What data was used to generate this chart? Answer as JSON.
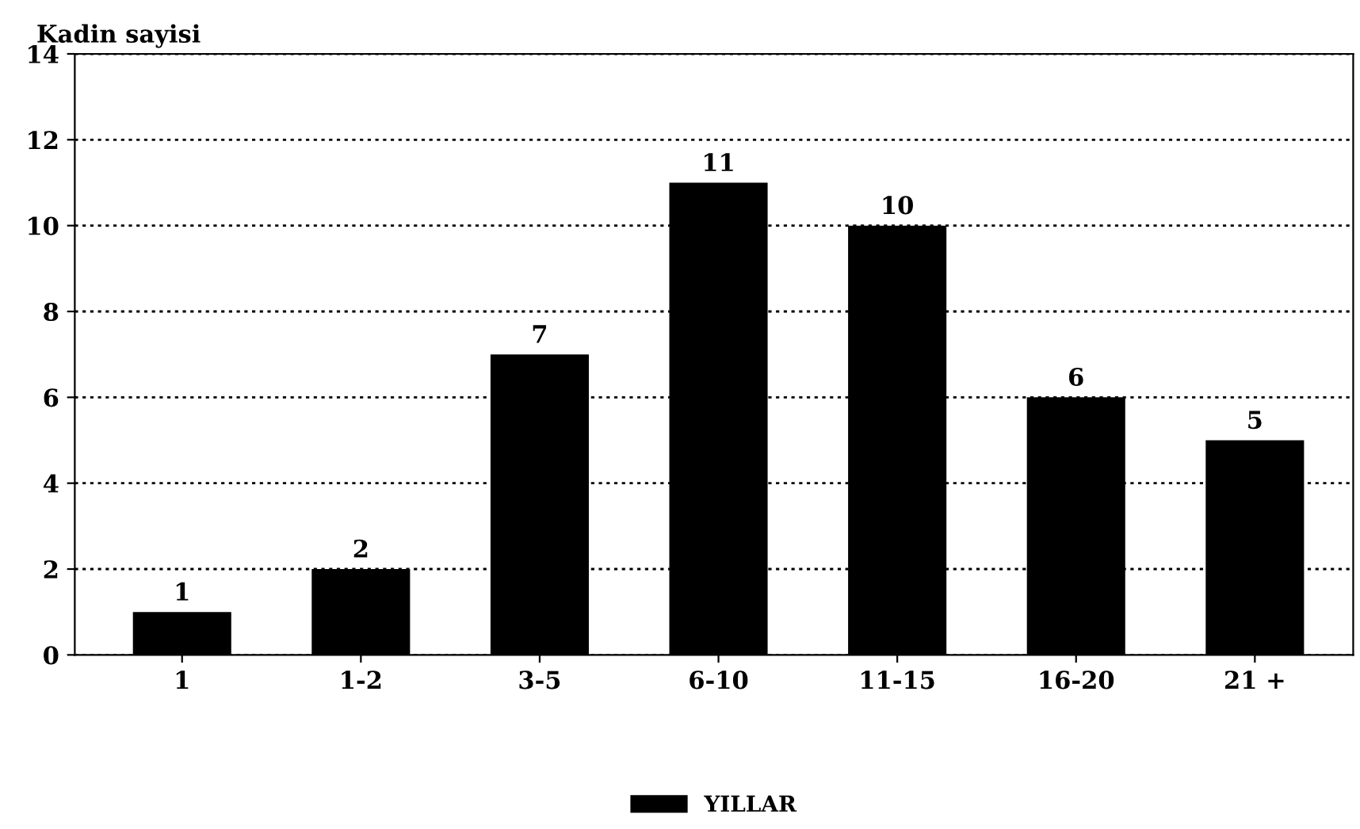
{
  "chart_data": {
    "type": "bar",
    "ylabel": "Kadin sayisi",
    "categories": [
      "1",
      "1-2",
      "3-5",
      "6-10",
      "11-15",
      "16-20",
      "21 +"
    ],
    "series": [
      {
        "name": "YILLAR",
        "color": "#000000",
        "values": [
          1,
          2,
          7,
          11,
          10,
          6,
          5
        ]
      }
    ],
    "ylim": [
      0,
      14
    ],
    "yticks": [
      0,
      2,
      4,
      6,
      8,
      10,
      12,
      14
    ],
    "grid": "y",
    "legend": "bottom",
    "data_labels": true
  }
}
